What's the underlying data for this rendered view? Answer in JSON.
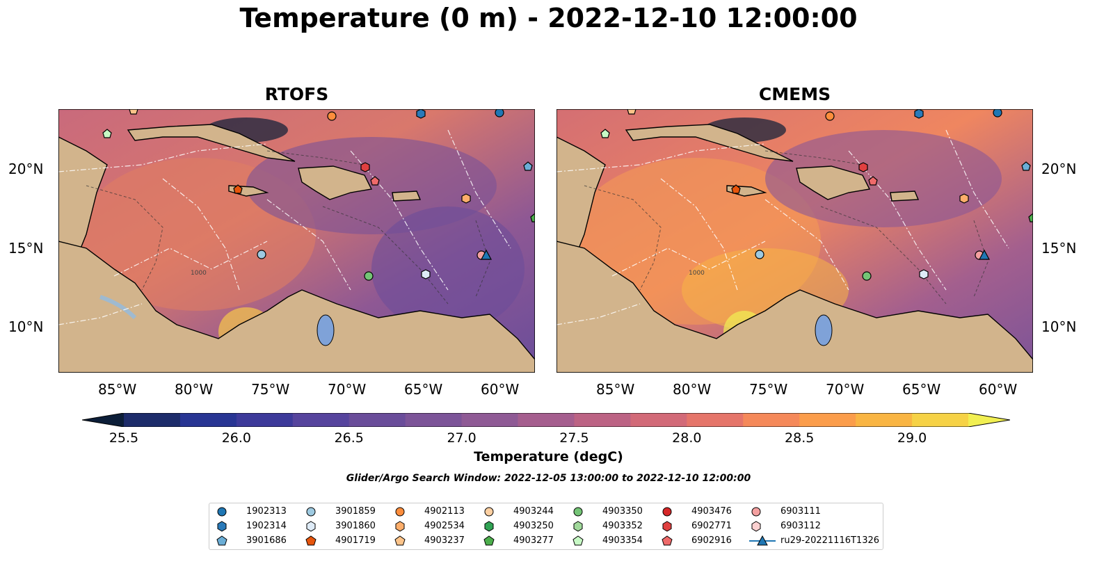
{
  "figure": {
    "title": "Temperature (0 m) - 2022-12-10 12:00:00",
    "panels": [
      {
        "title": "RTOFS"
      },
      {
        "title": "CMEMS"
      }
    ],
    "lat_ticks": [
      "20°N",
      "15°N",
      "10°N"
    ],
    "lon_ticks": [
      "85°W",
      "80°W",
      "75°W",
      "70°W",
      "65°W",
      "60°W"
    ],
    "colorbar": {
      "label": "Temperature (degC)",
      "ticks": [
        "25.5",
        "26.0",
        "26.5",
        "27.0",
        "27.5",
        "28.0",
        "28.5",
        "29.0"
      ],
      "range": [
        25.5,
        29.25
      ],
      "colors": [
        "#0c1e38",
        "#1d2c6a",
        "#283593",
        "#3d3a9a",
        "#56449d",
        "#6a4d9a",
        "#7c5498",
        "#8f5a95",
        "#a55e8e",
        "#bc6384",
        "#d26a78",
        "#e5756a",
        "#f5895a",
        "#fb9d4b",
        "#f9b543",
        "#f6d246",
        "#f1ef52"
      ]
    },
    "search_window": "Glider/Argo Search Window: 2022-12-05 13:00:00 to 2022-12-10 12:00:00"
  },
  "legend": [
    {
      "label": "1902313",
      "marker": "circle",
      "color": "#1f77b4"
    },
    {
      "label": "1902314",
      "marker": "hexagon",
      "color": "#2a7ab9"
    },
    {
      "label": "3901686",
      "marker": "pentagon",
      "color": "#6baed6"
    },
    {
      "label": "3901859",
      "marker": "circle",
      "color": "#9ecae1"
    },
    {
      "label": "3901860",
      "marker": "hexagon",
      "color": "#deebf7"
    },
    {
      "label": "4901719",
      "marker": "pentagon",
      "color": "#e6550d"
    },
    {
      "label": "4902113",
      "marker": "circle",
      "color": "#fd8d3c"
    },
    {
      "label": "4902534",
      "marker": "hexagon",
      "color": "#fdae6b"
    },
    {
      "label": "4903237",
      "marker": "pentagon",
      "color": "#fdc48a"
    },
    {
      "label": "4903244",
      "marker": "circle",
      "color": "#fdd0a2"
    },
    {
      "label": "4903250",
      "marker": "hexagon",
      "color": "#31a354"
    },
    {
      "label": "4903277",
      "marker": "pentagon",
      "color": "#4cae4c"
    },
    {
      "label": "4903350",
      "marker": "circle",
      "color": "#74c476"
    },
    {
      "label": "4903352",
      "marker": "hexagon",
      "color": "#a1d99b"
    },
    {
      "label": "4903354",
      "marker": "pentagon",
      "color": "#c7f9c5"
    },
    {
      "label": "4903476",
      "marker": "circle",
      "color": "#d62728"
    },
    {
      "label": "6902771",
      "marker": "hexagon",
      "color": "#e04040"
    },
    {
      "label": "6902916",
      "marker": "pentagon",
      "color": "#ef6a6a"
    },
    {
      "label": "6903111",
      "marker": "circle",
      "color": "#f4a0a0"
    },
    {
      "label": "6903112",
      "marker": "hexagon",
      "color": "#fbd0d0"
    },
    {
      "label": "ru29-20221116T1326",
      "marker": "triangle-line",
      "color": "#1f77b4"
    }
  ],
  "contour_label": "1000",
  "colors": {
    "land": "#d2b48c",
    "lake": "#7fa2d8",
    "river": "#9fbad0"
  }
}
